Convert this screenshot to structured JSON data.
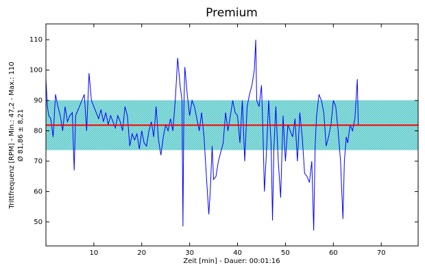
{
  "chart_data": {
    "type": "line",
    "title": "Premium",
    "x_label": "Zeit [min] - Dauer: 00:01:16",
    "y_label": [
      "Trittfrequenz [RPM] - Min.: 47,2 - Max.: 110",
      "Ø 81,86 ± 8,21"
    ],
    "xlim": [
      0,
      77.7
    ],
    "ylim": [
      42.1,
      115.2
    ],
    "xticks": [
      10,
      20,
      30,
      40,
      50,
      60,
      70
    ],
    "yticks": [
      50,
      60,
      70,
      80,
      90,
      100,
      110
    ],
    "reference": {
      "mean": 81.86,
      "sd": 8.21,
      "line_color": "#ff0000",
      "band_color": "#5ccccc"
    },
    "x": [
      0,
      0.3,
      0.6,
      1,
      1.5,
      2,
      2.5,
      3,
      3.5,
      4,
      4.5,
      5,
      5.5,
      5.9,
      6.2,
      7,
      7.5,
      8,
      8.5,
      9,
      9.5,
      10,
      10.5,
      11,
      11.5,
      12,
      12.5,
      13,
      13.5,
      14,
      14.5,
      15,
      15.5,
      16,
      16.5,
      17,
      17.5,
      18,
      18.5,
      19,
      19.5,
      20,
      20.5,
      21,
      21.5,
      22,
      22.5,
      23,
      23.5,
      24,
      24.5,
      25,
      25.5,
      26,
      26.5,
      27,
      27.5,
      28,
      28.4,
      28.6,
      28.8,
      29,
      29.5,
      30,
      30.5,
      31,
      31.5,
      32,
      32.5,
      33,
      33.5,
      34,
      34.3,
      34.7,
      35,
      35.5,
      36,
      36.5,
      37,
      37.5,
      38,
      38.5,
      39,
      39.5,
      40,
      40.5,
      41,
      41.5,
      42,
      42.5,
      43,
      43.5,
      43.8,
      44,
      44.5,
      45,
      45.3,
      45.6,
      46,
      46.5,
      47,
      47.3,
      47.6,
      48,
      48.5,
      49,
      49.5,
      50,
      50.5,
      51,
      51.5,
      52,
      52.5,
      53,
      53.5,
      54,
      54.5,
      55,
      55.5,
      55.9,
      56.2,
      56.5,
      57,
      57.5,
      58,
      58.5,
      59,
      59.5,
      60,
      60.5,
      61,
      61.5,
      62,
      62.3,
      62.7,
      63,
      63.5,
      64,
      64.5,
      65,
      65.2
    ],
    "series": [
      {
        "name": "Trittfrequenz",
        "color": "#0000ff",
        "values": [
          97,
          88,
          85,
          84,
          78,
          92,
          88,
          85,
          80,
          88,
          83,
          85,
          86,
          67,
          85,
          88,
          90,
          92,
          80,
          99,
          90,
          88,
          86,
          84,
          87,
          83,
          86,
          82,
          85,
          83,
          81,
          85,
          83,
          80,
          88,
          85,
          75,
          79,
          77,
          79,
          74,
          80,
          76,
          75,
          80,
          83,
          78,
          88,
          77,
          72,
          78,
          82,
          80,
          84,
          80,
          90,
          104,
          95,
          90,
          48.5,
          88,
          101,
          92,
          85,
          90,
          88,
          84,
          80,
          86,
          78,
          65,
          52.5,
          60,
          75,
          64,
          65,
          70,
          73,
          76,
          86,
          80,
          85,
          90,
          86,
          85,
          76,
          90,
          70,
          88,
          92,
          95,
          100,
          110,
          90,
          88,
          95,
          80,
          60,
          72,
          90,
          76,
          50.5,
          75,
          88,
          70,
          58,
          85,
          70,
          82,
          80,
          78,
          84,
          70,
          86,
          78,
          66,
          65,
          63,
          70,
          47.2,
          75,
          85,
          92,
          90,
          86,
          75,
          78,
          82,
          90,
          88,
          80,
          70,
          51,
          70,
          78,
          76,
          82,
          80,
          84,
          97,
          82
        ]
      }
    ]
  }
}
